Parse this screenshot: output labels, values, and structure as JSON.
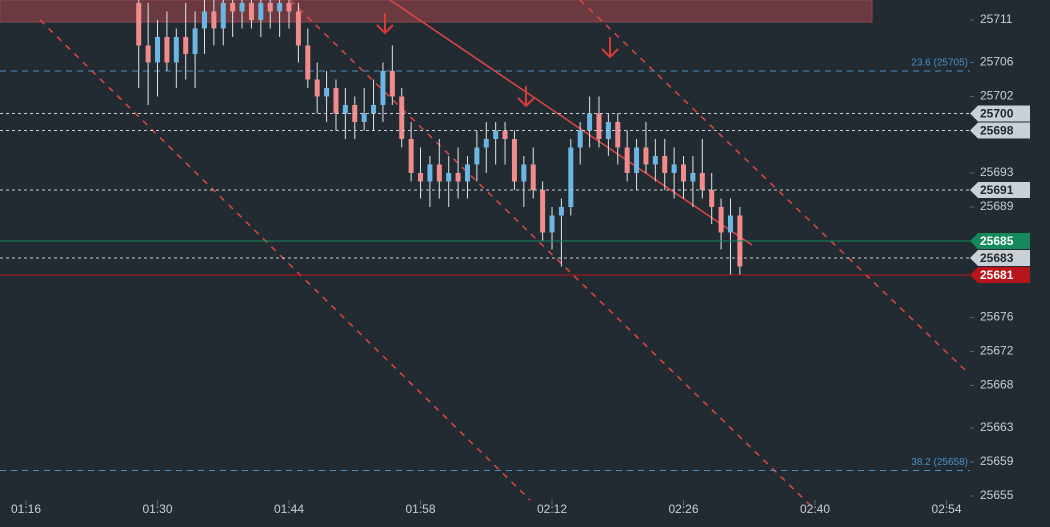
{
  "chart_data": {
    "type": "candlestick",
    "x": [
      88,
      89,
      90,
      91,
      92,
      93,
      94,
      95,
      96,
      97,
      98,
      99,
      100,
      101,
      102,
      103,
      104,
      105,
      106,
      107,
      108,
      109,
      110,
      111,
      112,
      113,
      114,
      115,
      116,
      117,
      118,
      119,
      120,
      121,
      122,
      123,
      124,
      125,
      126,
      127,
      128,
      129,
      130,
      131,
      132,
      133,
      134,
      135,
      136,
      137,
      138,
      139,
      140,
      141,
      142,
      143,
      144,
      145,
      146,
      147,
      148,
      149,
      150,
      151,
      152
    ],
    "open": [
      25713,
      25708,
      25706,
      25709,
      25706,
      25709,
      25707,
      25710,
      25712,
      25710,
      25713,
      25712,
      25713,
      25711,
      25713,
      25712,
      25713,
      25712,
      25708,
      25704,
      25702,
      25703,
      25700,
      25701,
      25699,
      25700,
      25701,
      25705,
      25702,
      25697,
      25693,
      25692,
      25694,
      25692,
      25693,
      25692,
      25694,
      25696,
      25697,
      25698,
      25697,
      25692,
      25694,
      25691,
      25686,
      25688,
      25689,
      25696,
      25698,
      25700,
      25697,
      25699,
      25696,
      25693,
      25696,
      25694,
      25695,
      25693,
      25694,
      25692,
      25693,
      25691,
      25689,
      25686,
      25688
    ],
    "high": [
      25714,
      25713,
      25711,
      25712,
      25710,
      25713,
      25712,
      25714,
      25714,
      25714,
      25714,
      25714,
      25714,
      25714,
      25714,
      25714,
      25714,
      25713,
      25710,
      25706,
      25705,
      25704,
      25703,
      25702,
      25703,
      25704,
      25706,
      25708,
      25703,
      25699,
      25696,
      25695,
      25697,
      25695,
      25696,
      25695,
      25698,
      25699,
      25699,
      25699,
      25698,
      25695,
      25696,
      25692,
      25689,
      25690,
      25697,
      25699,
      25702,
      25702,
      25700,
      25700,
      25698,
      25697,
      25699,
      25697,
      25697,
      25696,
      25695,
      25695,
      25697,
      25693,
      25690,
      25690,
      25689
    ],
    "low": [
      25703,
      25701,
      25702,
      25705,
      25703,
      25704,
      25703,
      25707,
      25708,
      25708,
      25709,
      25710,
      25710,
      25709,
      25710,
      25709,
      25710,
      25706,
      25703,
      25700,
      25699,
      25698,
      25697,
      25697,
      25698,
      25698,
      25699,
      25701,
      25696,
      25692,
      25690,
      25689,
      25690,
      25689,
      25690,
      25690,
      25692,
      25693,
      25694,
      25694,
      25691,
      25689,
      25690,
      25685,
      25684,
      25682,
      25688,
      25694,
      25696,
      25696,
      25695,
      25694,
      25692,
      25691,
      25693,
      25692,
      25691,
      25690,
      25690,
      25689,
      25690,
      25687,
      25684,
      25681,
      25681
    ],
    "close": [
      25708,
      25706,
      25709,
      25706,
      25709,
      25707,
      25710,
      25712,
      25710,
      25713,
      25712,
      25713,
      25711,
      25713,
      25712,
      25713,
      25712,
      25708,
      25704,
      25702,
      25703,
      25700,
      25701,
      25699,
      25700,
      25701,
      25705,
      25702,
      25697,
      25693,
      25692,
      25694,
      25692,
      25693,
      25692,
      25694,
      25696,
      25697,
      25698,
      25697,
      25692,
      25694,
      25691,
      25686,
      25688,
      25689,
      25696,
      25698,
      25700,
      25697,
      25699,
      25696,
      25693,
      25696,
      25694,
      25695,
      25693,
      25694,
      25692,
      25693,
      25691,
      25689,
      25686,
      25688,
      25682
    ],
    "up_color": "#6cb6e6",
    "down_color": "#f08c8c",
    "xlim": [
      73.23,
      176.5
    ],
    "xticks": [
      {
        "value": 76,
        "label": "01:16"
      },
      {
        "value": 90,
        "label": "01:30"
      },
      {
        "value": 104,
        "label": "01:44"
      },
      {
        "value": 118,
        "label": "01:58"
      },
      {
        "value": 132,
        "label": "02:12"
      },
      {
        "value": 146,
        "label": "02:26"
      },
      {
        "value": 160,
        "label": "02:40"
      },
      {
        "value": 174,
        "label": "02:54"
      }
    ],
    "ylim": [
      25651.35,
      25713.35
    ],
    "yticks": [
      25711,
      25706,
      25702,
      25693,
      25689,
      25676,
      25672,
      25668,
      25663,
      25659,
      25655
    ],
    "fib_levels": [
      {
        "value": 25705,
        "label": "23.6 (25705)"
      },
      {
        "value": 25658,
        "label": "38.2 (25658)"
      }
    ],
    "fib_color": "#4a8fc4",
    "levels": [
      {
        "value": 25700,
        "color": "#c9d0d6",
        "dashed": true
      },
      {
        "value": 25698,
        "color": "#c9d0d6",
        "dashed": true
      },
      {
        "value": 25691,
        "color": "#c9d0d6",
        "dashed": true
      },
      {
        "value": 25683,
        "color": "#c9d0d6",
        "dashed": true
      },
      {
        "value": 25685,
        "color": "#13895c",
        "dashed": false
      },
      {
        "value": 25681,
        "color": "#b8141c",
        "dashed": false
      }
    ]
  }
}
